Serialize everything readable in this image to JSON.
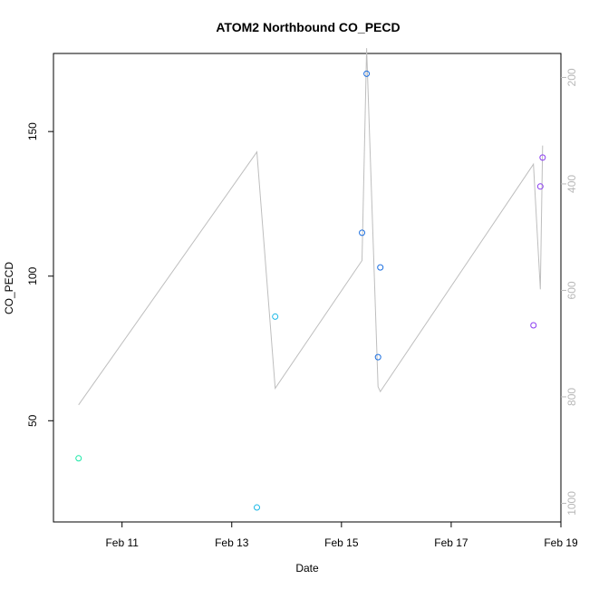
{
  "chart_data": {
    "type": "scatter",
    "title": "ATOM2 Northbound CO_PECD",
    "xlabel": "Date",
    "ylabel": "CO_PECD",
    "x_ticks": [
      "Feb 11",
      "Feb 13",
      "Feb 15",
      "Feb 17",
      "Feb 19"
    ],
    "y_ticks": [
      50,
      100,
      150
    ],
    "y_right_ticks": [
      200,
      400,
      600,
      800,
      1000
    ],
    "colors": {
      "line": "#bebebe",
      "axis": "#000000",
      "right_axis": "#b8b8b8"
    },
    "scatter": [
      {
        "x": "2024-02-10 05:00",
        "y": 37,
        "color": "#19e8a6"
      },
      {
        "x": "2024-02-13 11:00",
        "y": 20,
        "color": "#1ab8e6"
      },
      {
        "x": "2024-02-13 19:00",
        "y": 86,
        "color": "#1ab8e6"
      },
      {
        "x": "2024-02-15 09:00",
        "y": 115,
        "color": "#1c6fe0"
      },
      {
        "x": "2024-02-15 11:00",
        "y": 170,
        "color": "#1c6fe0"
      },
      {
        "x": "2024-02-15 16:00",
        "y": 72,
        "color": "#1c6fe0"
      },
      {
        "x": "2024-02-15 17:00",
        "y": 103,
        "color": "#1c6fe0"
      },
      {
        "x": "2024-02-18 12:00",
        "y": 83,
        "color": "#8a3cf0"
      },
      {
        "x": "2024-02-18 15:00",
        "y": 131,
        "color": "#8a3cf0"
      },
      {
        "x": "2024-02-18 16:00",
        "y": 141,
        "color": "#8a3cf0"
      }
    ],
    "line_series": {
      "axis": "right",
      "x": [
        "2024-02-10 05:00",
        "2024-02-13 11:00",
        "2024-02-13 19:00",
        "2024-02-15 09:00",
        "2024-02-15 11:00",
        "2024-02-15 16:00",
        "2024-02-15 17:00",
        "2024-02-18 12:00",
        "2024-02-18 15:00",
        "2024-02-18 16:00"
      ],
      "y": [
        815,
        340,
        784,
        544,
        145,
        781,
        790,
        363,
        598,
        328
      ]
    },
    "xlim": [
      "2024-02-09 18:00",
      "2024-02-19 00:00"
    ],
    "ylim": [
      15,
      177
    ],
    "ylim_right": [
      155,
      1035
    ],
    "grid": false
  }
}
